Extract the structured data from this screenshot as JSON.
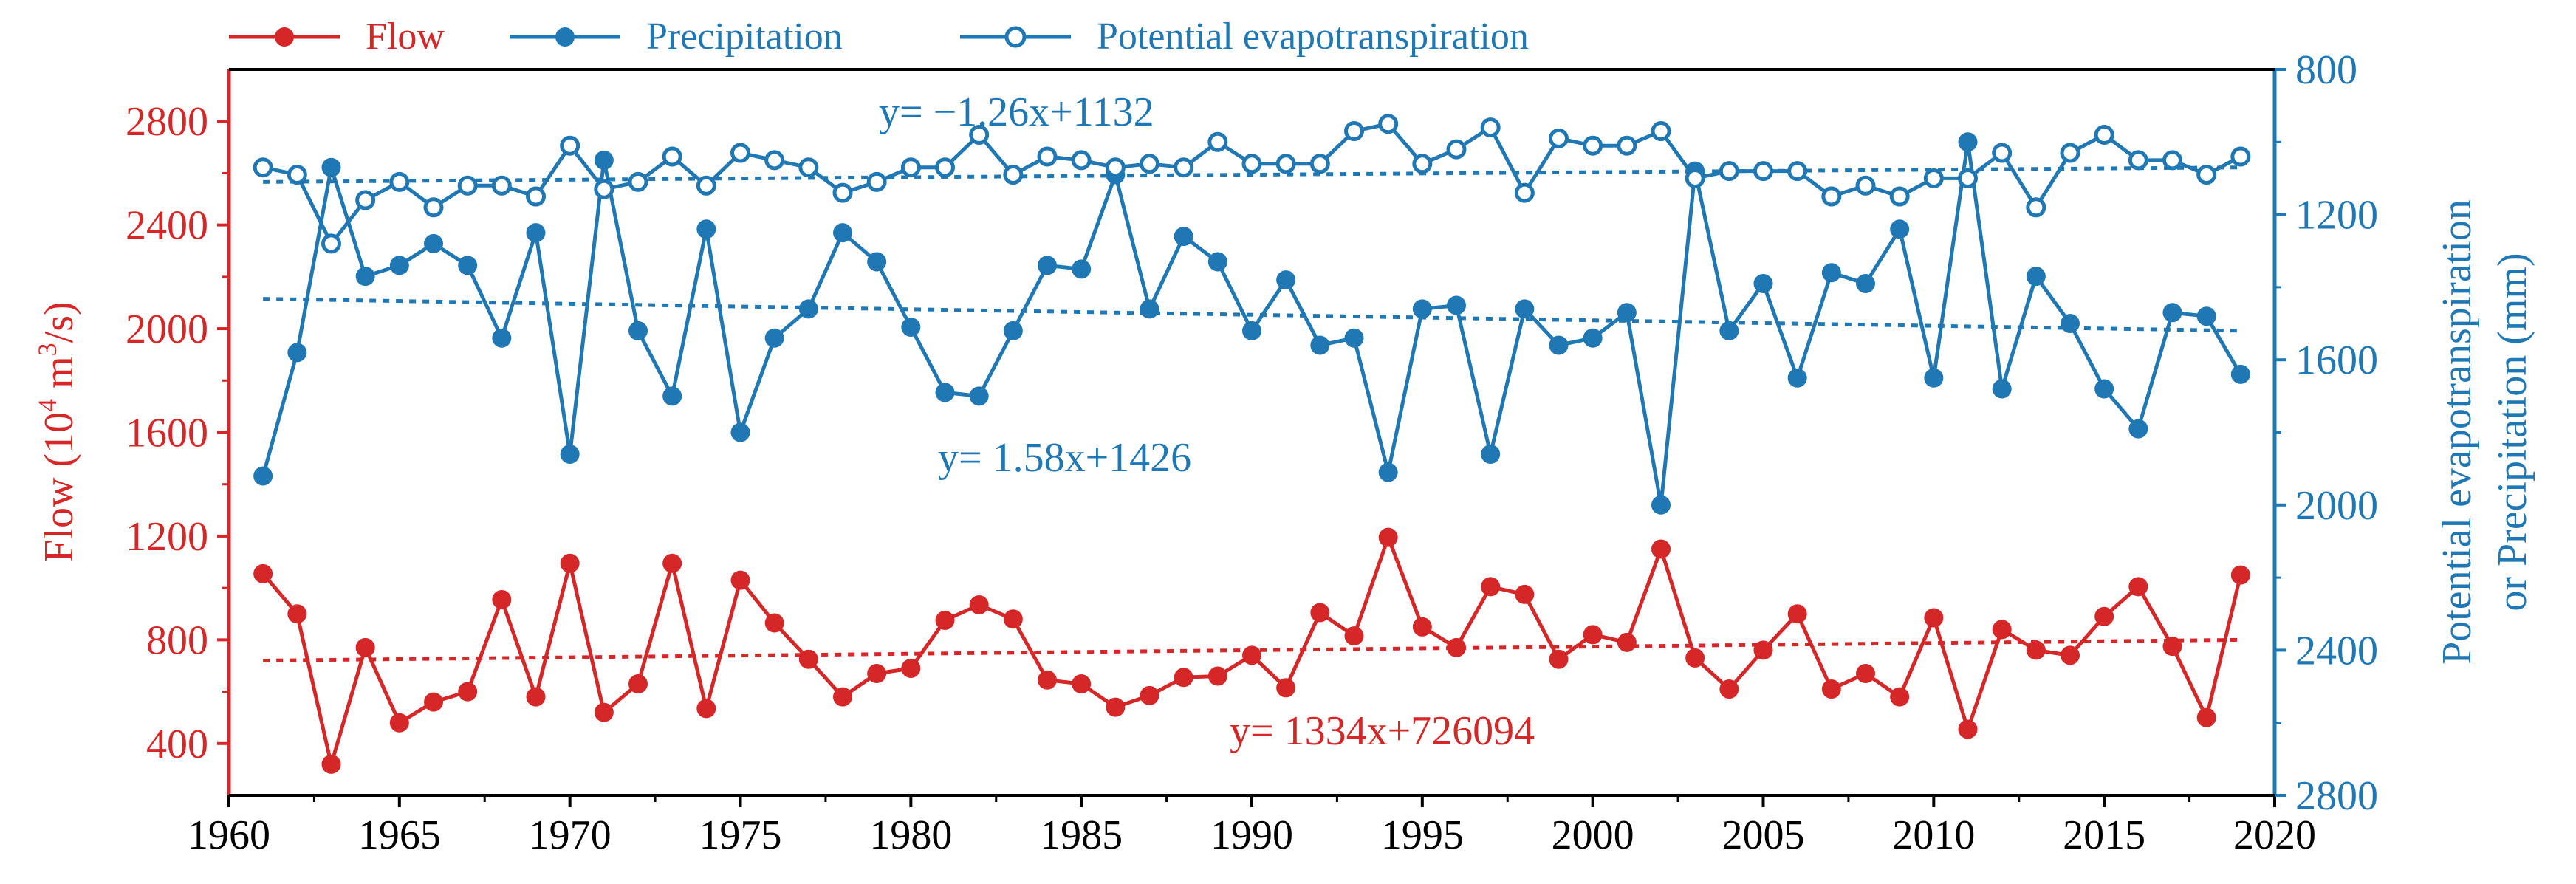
{
  "chart_data": {
    "type": "line",
    "x_axis": {
      "label": "",
      "range": [
        1960,
        2020
      ],
      "ticks": [
        1960,
        1965,
        1970,
        1975,
        1980,
        1985,
        1990,
        1995,
        2000,
        2005,
        2010,
        2015,
        2020
      ]
    },
    "y_left": {
      "label_main": "Flow (10",
      "label_sup": "4",
      "label_mid": " m",
      "label_sup2": "3",
      "label_end": "/s)",
      "range": [
        200,
        3000
      ],
      "ticks": [
        400,
        800,
        1200,
        1600,
        2000,
        2400,
        2800
      ],
      "color": "#d62728"
    },
    "y_right": {
      "label_line1": "Potential evapotranspiration",
      "label_line2": "or Precipitation (mm)",
      "range": [
        800,
        2800
      ],
      "inverted": true,
      "ticks": [
        800,
        1200,
        1600,
        2000,
        2400,
        2800
      ],
      "color": "#1f77b4"
    },
    "legend": {
      "placement": "top",
      "entries": [
        {
          "label": "Flow",
          "color": "#d62728",
          "marker": "filled"
        },
        {
          "label": "Precipitation",
          "color": "#1f77b4",
          "marker": "filled"
        },
        {
          "label": "Potential evapotranspiration",
          "color": "#1f77b4",
          "marker": "hollow"
        }
      ]
    },
    "annotations": [
      {
        "text": "y= −1.26x+1132",
        "series": "Potential evapotranspiration"
      },
      {
        "text": "y= 1.58x+1426",
        "series": "Precipitation"
      },
      {
        "text": "y= 1334x+726094",
        "series": "Flow"
      }
    ],
    "x": [
      1961,
      1962,
      1963,
      1964,
      1965,
      1966,
      1967,
      1968,
      1969,
      1970,
      1971,
      1972,
      1973,
      1974,
      1975,
      1976,
      1977,
      1978,
      1979,
      1980,
      1981,
      1982,
      1983,
      1984,
      1985,
      1986,
      1987,
      1988,
      1989,
      1990,
      1991,
      1992,
      1993,
      1994,
      1995,
      1996,
      1997,
      1998,
      1999,
      2000,
      2001,
      2002,
      2003,
      2004,
      2005,
      2006,
      2007,
      2008,
      2009,
      2010,
      2011,
      2012,
      2013,
      2014,
      2015,
      2016,
      2017,
      2018,
      2019
    ],
    "series": [
      {
        "name": "Flow",
        "axis": "left",
        "color": "#d62728",
        "marker": "filled",
        "values": [
          1055,
          900,
          320,
          770,
          480,
          560,
          600,
          955,
          580,
          1095,
          520,
          630,
          1095,
          535,
          1030,
          865,
          725,
          580,
          670,
          690,
          875,
          935,
          880,
          645,
          630,
          540,
          585,
          655,
          660,
          740,
          615,
          905,
          815,
          1195,
          850,
          770,
          1005,
          975,
          725,
          820,
          790,
          1150,
          730,
          610,
          760,
          900,
          610,
          670,
          580,
          885,
          455,
          840,
          760,
          740,
          890,
          1005,
          775,
          500,
          1050
        ]
      },
      {
        "name": "Precipitation",
        "axis": "right",
        "color": "#1f77b4",
        "marker": "filled",
        "values": [
          1920,
          1580,
          1070,
          1370,
          1340,
          1280,
          1340,
          1540,
          1250,
          1860,
          1050,
          1520,
          1700,
          1240,
          1800,
          1540,
          1460,
          1250,
          1330,
          1510,
          1690,
          1700,
          1520,
          1340,
          1350,
          1090,
          1460,
          1260,
          1330,
          1520,
          1380,
          1560,
          1540,
          1910,
          1460,
          1450,
          1860,
          1460,
          1560,
          1540,
          1470,
          2000,
          1080,
          1520,
          1390,
          1650,
          1360,
          1390,
          1240,
          1650,
          1000,
          1680,
          1370,
          1500,
          1680,
          1790,
          1470,
          1480,
          1640
        ]
      },
      {
        "name": "Potential evapotranspiration",
        "axis": "right",
        "color": "#1f77b4",
        "marker": "hollow",
        "values": [
          1070,
          1090,
          1280,
          1160,
          1110,
          1180,
          1120,
          1120,
          1150,
          1010,
          1130,
          1110,
          1040,
          1120,
          1030,
          1050,
          1070,
          1140,
          1110,
          1070,
          1070,
          980,
          1090,
          1040,
          1050,
          1070,
          1060,
          1070,
          1000,
          1060,
          1060,
          1060,
          970,
          950,
          1060,
          1020,
          960,
          1140,
          990,
          1010,
          1010,
          970,
          1100,
          1080,
          1080,
          1080,
          1150,
          1120,
          1150,
          1100,
          1100,
          1030,
          1180,
          1030,
          980,
          1050,
          1050,
          1090,
          1040
        ]
      }
    ],
    "trendlines": [
      {
        "series": "Flow",
        "axis": "left",
        "x": [
          1961,
          2019
        ],
        "y": [
          720,
          800
        ]
      },
      {
        "series": "Precipitation",
        "axis": "right",
        "x": [
          1961,
          2019
        ],
        "y": [
          1432,
          1520
        ]
      },
      {
        "series": "Potential evapotranspiration",
        "axis": "right",
        "x": [
          1961,
          2019
        ],
        "y": [
          1110,
          1070
        ]
      }
    ]
  }
}
